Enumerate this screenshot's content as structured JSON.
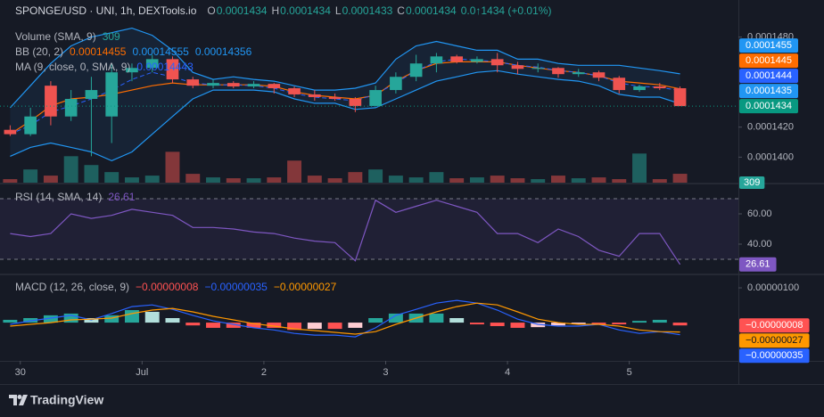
{
  "chart_data": [
    {
      "type": "candlestick",
      "title": "SPONGE/USD · UNI, 1h, DEXTools.io",
      "ohlc_legend": [
        {
          "key": "O",
          "value": 0.0001434
        },
        {
          "key": "H",
          "value": 0.0001434
        },
        {
          "key": "L",
          "value": 0.0001433
        },
        {
          "key": "C",
          "value": 0.0001434
        }
      ],
      "change": "0.0↑1434 (+0.01%)",
      "x": [
        -2,
        2,
        6,
        10,
        14,
        18,
        22,
        26,
        30,
        34,
        38,
        42,
        46,
        50,
        54,
        58,
        62,
        66,
        70,
        74,
        78,
        82,
        86,
        90,
        94,
        98,
        102,
        106,
        110,
        114,
        118,
        122,
        126,
        130
      ],
      "xlim": [
        -4,
        141.5
      ],
      "xticks": [
        {
          "value": 0,
          "label": "30"
        },
        {
          "value": 24,
          "label": "Jul"
        },
        {
          "value": 48,
          "label": "2"
        },
        {
          "value": 72,
          "label": "3"
        },
        {
          "value": 96,
          "label": "4"
        },
        {
          "value": 120,
          "label": "5"
        }
      ],
      "open": [
        0.00014182,
        0.00014153,
        0.00014476,
        0.00014271,
        0.00014388,
        0.00014271,
        0.00014565,
        0.00014594,
        0.00014653,
        0.00014518,
        0.00014476,
        0.00014494,
        0.00014471,
        0.00014488,
        0.00014459,
        0.00014418,
        0.000144,
        0.00014388,
        0.00014341,
        0.00014447,
        0.00014535,
        0.00014624,
        0.00014671,
        0.00014635,
        0.00014653,
        0.00014612,
        0.00014588,
        0.00014594,
        0.00014553,
        0.00014565,
        0.00014529,
        0.00014447,
        0.00014471,
        0.00014459
      ],
      "high": [
        0.00014212,
        0.00014329,
        0.00014506,
        0.00014447,
        0.00014535,
        0.00014624,
        0.00014624,
        0.00014682,
        0.00014671,
        0.00014535,
        0.00014518,
        0.00014506,
        0.00014506,
        0.00014494,
        0.00014471,
        0.00014447,
        0.00014424,
        0.000144,
        0.00014476,
        0.00014565,
        0.00014682,
        0.00014694,
        0.00014682,
        0.00014671,
        0.00014694,
        0.00014635,
        0.00014624,
        0.000146,
        0.00014588,
        0.00014576,
        0.00014541,
        0.00014482,
        0.00014494,
        0.00014471
      ],
      "low": [
        0.00014141,
        0.00014141,
        0.00014212,
        0.00014241,
        0.00014006,
        0.00014094,
        0.00014506,
        0.00014565,
        0.00014494,
        0.00014459,
        0.00014459,
        0.00014459,
        0.00014459,
        0.00014424,
        0.000144,
        0.00014376,
        0.00014376,
        0.000143,
        0.00014341,
        0.00014424,
        0.00014506,
        0.00014565,
        0.00014624,
        0.00014624,
        0.00014565,
        0.00014553,
        0.00014565,
        0.00014529,
        0.00014535,
        0.00014506,
        0.00014424,
        0.00014435,
        0.00014447,
        0.0001434
      ],
      "close": [
        0.00014153,
        0.00014271,
        0.00014271,
        0.00014388,
        0.00014447,
        0.00014565,
        0.00014594,
        0.00014653,
        0.00014518,
        0.00014476,
        0.00014494,
        0.00014471,
        0.00014488,
        0.00014459,
        0.00014418,
        0.000144,
        0.00014388,
        0.00014341,
        0.00014447,
        0.00014535,
        0.00014624,
        0.00014671,
        0.00014635,
        0.00014653,
        0.00014612,
        0.00014588,
        0.00014594,
        0.00014553,
        0.00014565,
        0.00014529,
        0.00014447,
        0.00014471,
        0.00014459,
        0.0001434
      ],
      "up_color": "#26a69a",
      "down_color": "#ef5350",
      "last_label": 0.0001434,
      "last_color": "#089981",
      "ylim": [
        0.0001383,
        0.00015035
      ],
      "yticks": [
        {
          "value": 0.000148,
          "label": "0.0001480"
        },
        {
          "value": 0.000142,
          "label": "0.0001420"
        },
        {
          "value": 0.00014,
          "label": "0.0001400"
        }
      ],
      "volume": {
        "name": "Volume (SMA, 9)",
        "y2lim": [
          0,
          6300
        ],
        "up_color": "#26a69a",
        "down_color": "#ef5350",
        "values": [
          123,
          460,
          246,
          921,
          614,
          368,
          184,
          246,
          1075,
          307,
          184,
          154,
          154,
          184,
          768,
          246,
          154,
          368,
          460,
          246,
          184,
          368,
          154,
          184,
          246,
          154,
          123,
          246,
          154,
          184,
          123,
          1014,
          123,
          309
        ]
      },
      "bb": {
        "name": "BB (20, 2)",
        "fill": "#2196f3",
        "lines": [
          {
            "color": "#ff6d00",
            "last_label": 0.0001445,
            "values": [
              0.00014153,
              0.00014241,
              0.00014341,
              0.00014388,
              0.000144,
              0.00014418,
              0.00014447,
              0.00014476,
              0.00014494,
              0.00014482,
              0.00014482,
              0.00014482,
              0.00014482,
              0.00014471,
              0.00014435,
              0.00014412,
              0.000144,
              0.00014388,
              0.00014412,
              0.00014506,
              0.00014576,
              0.00014624,
              0.00014635,
              0.00014635,
              0.00014635,
              0.00014612,
              0.00014594,
              0.00014576,
              0.00014565,
              0.00014541,
              0.00014506,
              0.00014494,
              0.00014482,
              0.00014455
            ]
          },
          {
            "color": "#2196f3",
            "last_label": 0.0001455,
            "values": [
              0.00014329,
              0.00014476,
              0.00014624,
              0.00014741,
              0.000148,
              0.00014829,
              0.00014859,
              0.00014812,
              0.00014712,
              0.00014565,
              0.00014518,
              0.00014535,
              0.00014518,
              0.00014506,
              0.00014476,
              0.00014447,
              0.00014447,
              0.00014459,
              0.00014494,
              0.00014653,
              0.00014741,
              0.00014771,
              0.00014741,
              0.00014712,
              0.00014712,
              0.00014653,
              0.00014653,
              0.00014624,
              0.00014612,
              0.00014612,
              0.00014612,
              0.00014594,
              0.00014576,
              0.00014555
            ]
          },
          {
            "color": "#2196f3",
            "last_label": 0.0001435,
            "values": [
              0.00014006,
              0.00014065,
              0.00014094,
              0.00014065,
              0.00014035,
              0.00013976,
              0.00014035,
              0.00014153,
              0.00014271,
              0.00014388,
              0.00014447,
              0.00014447,
              0.00014447,
              0.00014435,
              0.00014388,
              0.00014359,
              0.00014359,
              0.00014318,
              0.00014329,
              0.00014388,
              0.00014447,
              0.00014506,
              0.00014535,
              0.00014565,
              0.00014576,
              0.00014553,
              0.00014535,
              0.00014518,
              0.00014506,
              0.00014476,
              0.00014418,
              0.000144,
              0.000144,
              0.00014356
            ]
          }
        ]
      },
      "ma": {
        "name": "MA (9, close, 0, SMA, 9)",
        "color": "#2962ff",
        "last_label": 0.0001444,
        "values": [
          0.00014153,
          0.00014212,
          0.000143,
          0.00014341,
          0.00014388,
          0.00014447,
          0.00014518,
          0.00014565,
          0.00014535,
          0.00014494,
          0.00014482,
          0.00014482,
          0.00014476,
          0.00014459,
          0.00014424,
          0.000144,
          0.00014388,
          0.00014376,
          0.00014418,
          0.00014494,
          0.00014576,
          0.00014635,
          0.00014653,
          0.00014647,
          0.00014635,
          0.00014612,
          0.000146,
          0.00014576,
          0.00014565,
          0.00014541,
          0.00014494,
          0.00014471,
          0.00014465,
          0.00014443
        ]
      }
    },
    {
      "type": "line",
      "title": "RSI (14, SMA, 14)",
      "color": "#7e57c2",
      "values": [
        47,
        45,
        47,
        60,
        57,
        59,
        63,
        61,
        59,
        51,
        51,
        50,
        48,
        47,
        44,
        42,
        41,
        29,
        69,
        61,
        65,
        69,
        65,
        61,
        47,
        47,
        41,
        50,
        45,
        36,
        32,
        47,
        47,
        26.61
      ],
      "ylim": [
        20.6,
        79.4
      ],
      "yticks": [
        {
          "value": 60,
          "label": "60.00"
        },
        {
          "value": 40,
          "label": "40.00"
        }
      ],
      "bands": [
        30,
        70
      ]
    },
    {
      "type": "combo",
      "title": "MACD (12, 26, close, 9)",
      "series": [
        {
          "kind": "bar",
          "colors": [
            "#26a69a",
            "#b2dfdb",
            "#ff5252",
            "#ffcdd2"
          ],
          "last_label": {
            "value": -8e-08,
            "label": "−0.00000008"
          },
          "values": [
            8e-08,
            1.3e-07,
            2.1e-07,
            2.6e-07,
            1.3e-07,
            2.1e-07,
            3.6e-07,
            3.1e-07,
            1.3e-07,
            -8e-08,
            -1.5e-07,
            -1.5e-07,
            -1.5e-07,
            -1.5e-07,
            -2.1e-07,
            -1.8e-07,
            -1.8e-07,
            -1.5e-07,
            1.3e-07,
            2.6e-07,
            2.6e-07,
            2.6e-07,
            1.3e-07,
            -5e-08,
            -1e-07,
            -1.5e-07,
            -1.3e-07,
            -8e-08,
            -5e-08,
            -5e-08,
            -5e-08,
            5e-08,
            8e-08,
            -8e-08
          ]
        },
        {
          "kind": "line",
          "color": "#2962ff",
          "last_label": {
            "value": -3.5e-07,
            "label": "−0.00000035"
          },
          "values": [
            -5e-08,
            5e-08,
            1.3e-07,
            2.1e-07,
            8e-08,
            2.6e-07,
            4.6e-07,
            5.1e-07,
            3.8e-07,
            2.1e-07,
            5e-08,
            -5e-08,
            -1.5e-07,
            -2.1e-07,
            -3.1e-07,
            -3.6e-07,
            -3.6e-07,
            -4.1e-07,
            -1.5e-07,
            2.1e-07,
            3.8e-07,
            5.6e-07,
            6.4e-07,
            5.6e-07,
            3.6e-07,
            1e-07,
            -5e-08,
            -1e-07,
            -1e-07,
            -5e-08,
            -2.1e-07,
            -3.1e-07,
            -2.6e-07,
            -3.5e-07
          ]
        },
        {
          "kind": "line",
          "color": "#ff9800",
          "last_label": {
            "value": -2.7e-07,
            "label": "−0.00000027"
          },
          "values": [
            -1e-07,
            -5e-08,
            0,
            8e-08,
            1e-07,
            1.3e-07,
            2.6e-07,
            3.6e-07,
            4.1e-07,
            3.1e-07,
            1.8e-07,
            8e-08,
            -3e-08,
            -1e-07,
            -1.8e-07,
            -2.3e-07,
            -2.8e-07,
            -3.3e-07,
            -2.6e-07,
            -5e-08,
            1.3e-07,
            3.1e-07,
            4.6e-07,
            5.6e-07,
            5.1e-07,
            3.1e-07,
            1e-07,
            0,
            -5e-08,
            -5e-08,
            -1e-07,
            -2.1e-07,
            -2.6e-07,
            -2.7e-07
          ]
        }
      ],
      "ylim": [
        -1.1e-06,
        1.36e-06
      ],
      "yticks": [
        {
          "value": 1e-06,
          "label": "0.00000100"
        }
      ]
    }
  ],
  "footer": {
    "brand": "TradingView"
  }
}
